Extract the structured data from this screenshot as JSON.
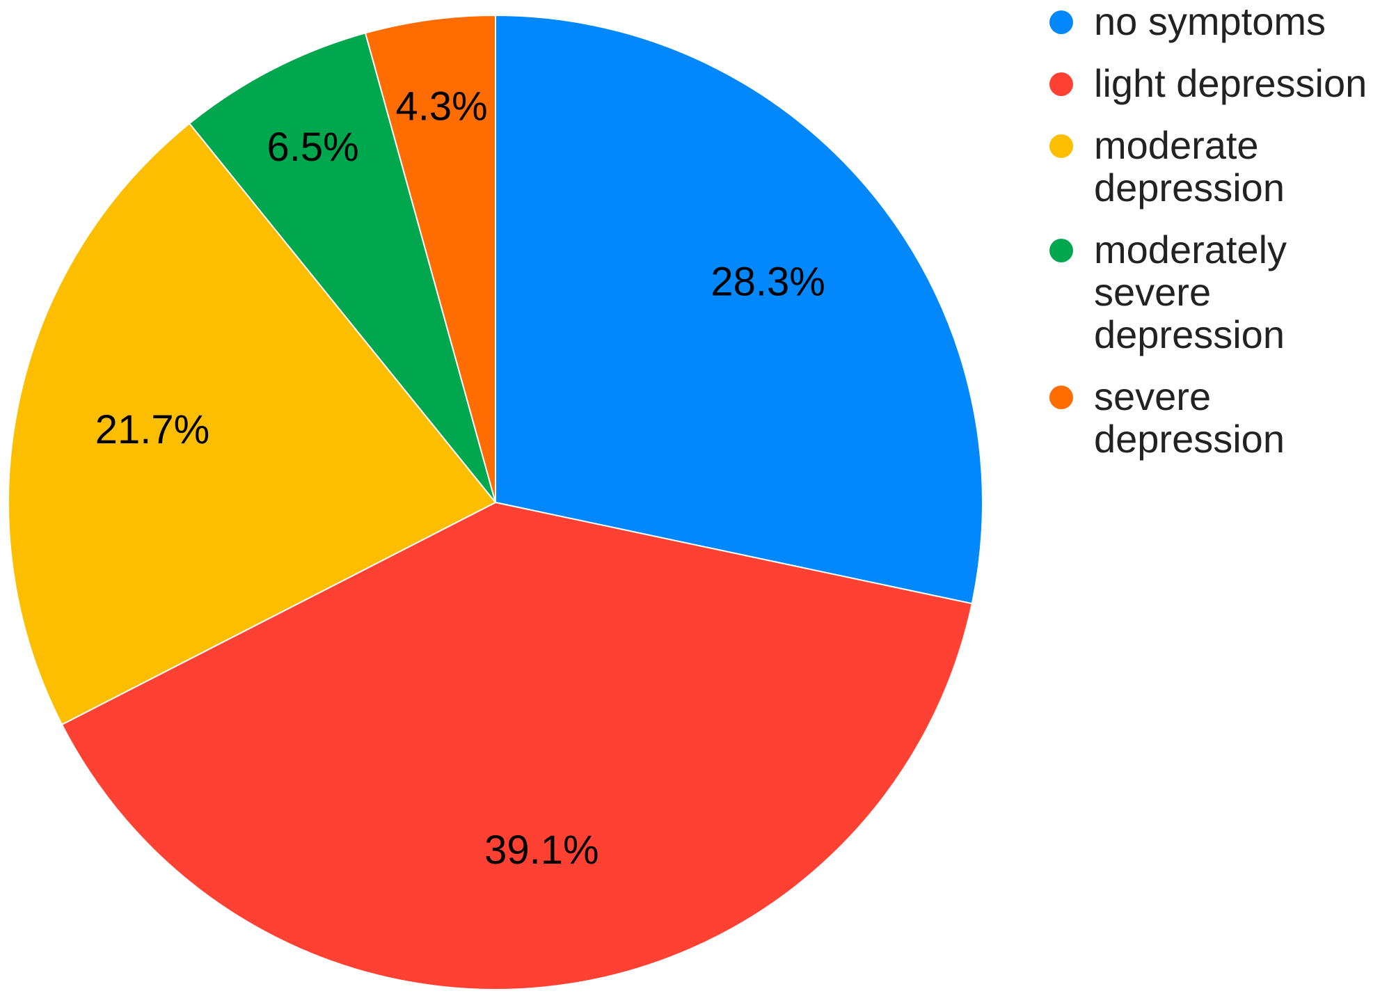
{
  "chart_data": {
    "type": "pie",
    "title": "",
    "slices": [
      {
        "label": "no symptoms",
        "value": 28.3,
        "display": "28.3%",
        "color": "#0388FB"
      },
      {
        "label": "light depression",
        "value": 39.1,
        "display": "39.1%",
        "color": "#FF4133"
      },
      {
        "label": "moderate depression",
        "value": 21.7,
        "display": "21.7%",
        "color": "#FDBE00"
      },
      {
        "label": "moderately severe depression",
        "value": 6.5,
        "display": "6.5%",
        "color": "#00A74E"
      },
      {
        "label": "severe depression",
        "value": 4.3,
        "display": "4.3%",
        "color": "#FF6C02"
      }
    ],
    "start_angle": "12 o'clock",
    "direction": "clockwise",
    "legend_position": "top-right"
  },
  "legend": {
    "items": [
      {
        "lines": [
          "no symptoms"
        ],
        "color": "#0388FB"
      },
      {
        "lines": [
          "light depression"
        ],
        "color": "#FF4133"
      },
      {
        "lines": [
          "moderate",
          "depression"
        ],
        "color": "#FDBE00"
      },
      {
        "lines": [
          "moderately",
          "severe",
          "depression"
        ],
        "color": "#00A74E"
      },
      {
        "lines": [
          "severe",
          "depression"
        ],
        "color": "#FF6C02"
      }
    ]
  }
}
